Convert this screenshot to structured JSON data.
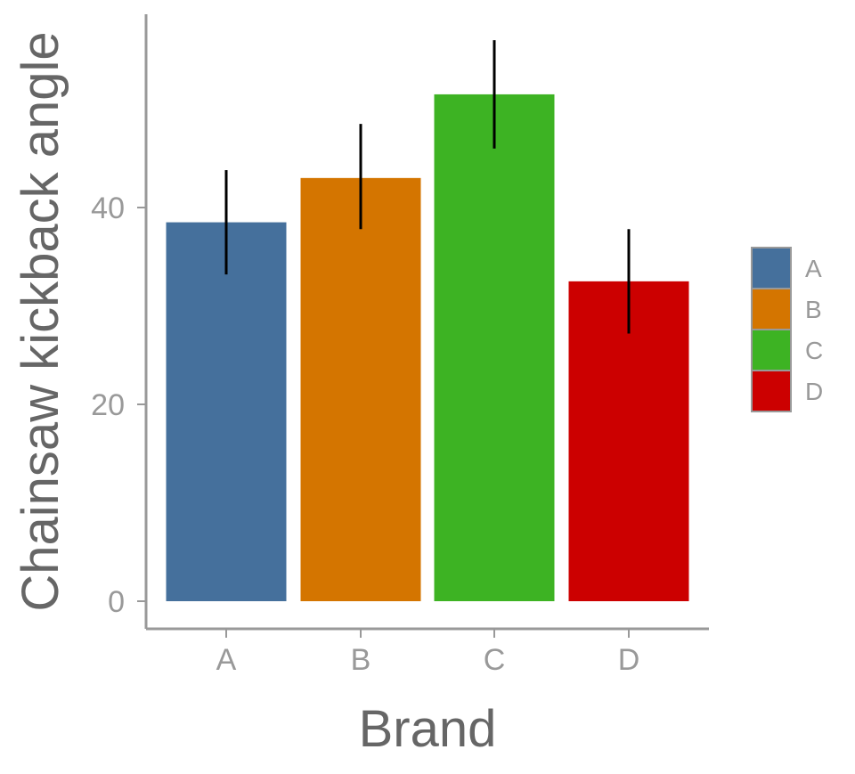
{
  "chart_data": {
    "type": "bar",
    "xlabel": "Brand",
    "ylabel": "Chainsaw kickback angle",
    "categories": [
      "A",
      "B",
      "C",
      "D"
    ],
    "values": [
      38.5,
      43.0,
      51.5,
      32.5
    ],
    "error_bars": [
      {
        "low": 33.2,
        "high": 43.8
      },
      {
        "low": 37.8,
        "high": 48.5
      },
      {
        "low": 46.0,
        "high": 57.0
      },
      {
        "low": 27.2,
        "high": 37.8
      }
    ],
    "colors": [
      "#45709c",
      "#d47500",
      "#3db323",
      "#cc0000"
    ],
    "yticks": [
      0,
      20,
      40
    ],
    "ylim": [
      -2.5,
      59
    ],
    "grid": false,
    "legend_position": "right",
    "legend": [
      "A",
      "B",
      "C",
      "D"
    ]
  }
}
